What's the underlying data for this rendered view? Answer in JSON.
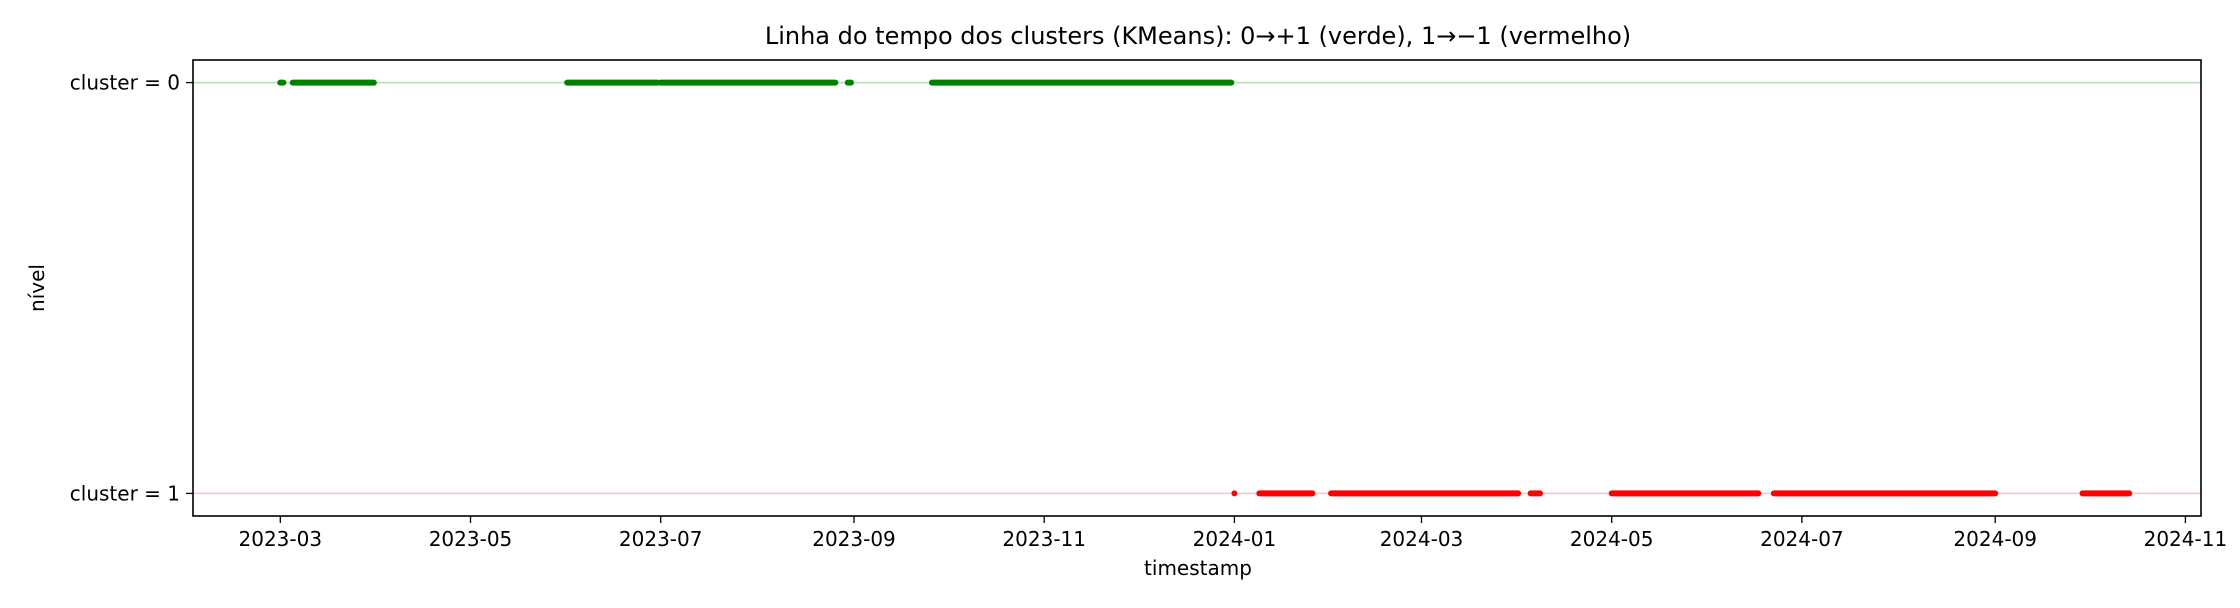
{
  "chart_data": {
    "type": "scatter",
    "title": "Linha do tempo dos clusters (KMeans): 0→+1 (verde), 1→−1 (vermelho)",
    "xlabel": "timestamp",
    "ylabel": "nível",
    "xlim": [
      "2023-02-01",
      "2024-11-06"
    ],
    "ylim": [
      -1.11,
      1.11
    ],
    "x_ticks": [
      "2023-03",
      "2023-05",
      "2023-07",
      "2023-09",
      "2023-11",
      "2024-01",
      "2024-03",
      "2024-05",
      "2024-07",
      "2024-09",
      "2024-11"
    ],
    "y_ticks": [
      {
        "label": "cluster = 0",
        "value": 1
      },
      {
        "label": "cluster = 1",
        "value": -1
      }
    ],
    "grid": false,
    "series": [
      {
        "cluster": 0,
        "level": 1,
        "color": "#008000",
        "segments": [
          [
            "2023-03-01",
            "2023-03-02"
          ],
          [
            "2023-03-05",
            "2023-03-31"
          ],
          [
            "2023-06-01",
            "2023-06-30"
          ],
          [
            "2023-07-01",
            "2023-08-26"
          ],
          [
            "2023-08-30",
            "2023-08-31"
          ],
          [
            "2023-09-26",
            "2023-12-31"
          ]
        ]
      },
      {
        "cluster": 1,
        "level": -1,
        "color": "#ff0000",
        "segments": [
          [
            "2024-01-01",
            "2024-01-01"
          ],
          [
            "2024-01-09",
            "2024-01-26"
          ],
          [
            "2024-02-01",
            "2024-04-01"
          ],
          [
            "2024-04-05",
            "2024-04-08"
          ],
          [
            "2024-05-01",
            "2024-06-17"
          ],
          [
            "2024-06-22",
            "2024-09-01"
          ],
          [
            "2024-09-29",
            "2024-10-14"
          ]
        ]
      }
    ],
    "reference_lines": [
      {
        "level": 1,
        "color": "#b7dbb7"
      },
      {
        "level": -1,
        "color": "#ffc0c0"
      }
    ]
  }
}
